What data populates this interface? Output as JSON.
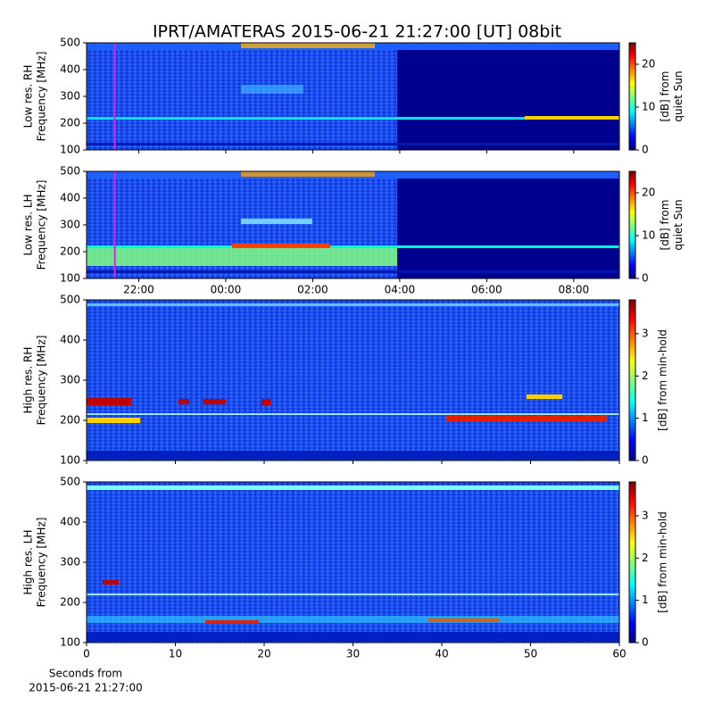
{
  "chart_data": [
    {
      "type": "heatmap",
      "title": "IPRT/AMATERAS 2015-06-21 21:27:00 [UT]   08bit",
      "ylabel": [
        "Low res. RH",
        "Frequency [MHz]"
      ],
      "ylim": [
        100,
        500
      ],
      "yticks": [
        100,
        200,
        300,
        400,
        500
      ],
      "xlim": [
        20.8,
        33.05
      ],
      "xticks": [
        {
          "value": 22,
          "label": "22:00"
        },
        {
          "value": 24,
          "label": "00:00"
        },
        {
          "value": 26,
          "label": "02:00"
        },
        {
          "value": 28,
          "label": "04:00"
        },
        {
          "value": 30,
          "label": "06:00"
        },
        {
          "value": 32,
          "label": "08:00"
        }
      ],
      "show_xtick_labels": false,
      "cursor": 21.45,
      "cursor_color": "#e020e0",
      "colorbar_label": [
        "[dB] from",
        "quiet Sun"
      ],
      "clim": [
        0,
        25
      ],
      "cticks": [
        0,
        10,
        20
      ],
      "colormap": "jet"
    },
    {
      "type": "heatmap",
      "ylabel": [
        "Low res. LH",
        "Frequency [MHz]"
      ],
      "ylim": [
        100,
        500
      ],
      "yticks": [
        100,
        200,
        300,
        400,
        500
      ],
      "xlim": [
        20.8,
        33.05
      ],
      "xticks": [
        {
          "value": 22,
          "label": "22:00"
        },
        {
          "value": 24,
          "label": "00:00"
        },
        {
          "value": 26,
          "label": "02:00"
        },
        {
          "value": 28,
          "label": "04:00"
        },
        {
          "value": 30,
          "label": "06:00"
        },
        {
          "value": 32,
          "label": "08:00"
        }
      ],
      "show_xtick_labels": true,
      "cursor": 21.45,
      "cursor_color": "#e020e0",
      "colorbar_label": [
        "[dB] from",
        "quiet Sun"
      ],
      "clim": [
        0,
        25
      ],
      "cticks": [
        0,
        10,
        20
      ],
      "colormap": "jet"
    },
    {
      "type": "heatmap",
      "ylabel": [
        "High res. RH",
        "Frequency [MHz]"
      ],
      "ylim": [
        100,
        500
      ],
      "yticks": [
        100,
        200,
        300,
        400,
        500
      ],
      "xlim": [
        0,
        60
      ],
      "xticks": [
        0,
        10,
        20,
        30,
        40,
        50,
        60
      ],
      "show_xtick_labels": false,
      "colorbar_label": [
        "[dB] from min-hold"
      ],
      "clim": [
        0,
        3.8
      ],
      "cticks": [
        0,
        1,
        2,
        3
      ],
      "colormap": "jet"
    },
    {
      "type": "heatmap",
      "ylabel": [
        "High res. LH",
        "Frequency [MHz]"
      ],
      "ylim": [
        100,
        500
      ],
      "yticks": [
        100,
        200,
        300,
        400,
        500
      ],
      "xlim": [
        0,
        60
      ],
      "xticks": [
        0,
        10,
        20,
        30,
        40,
        50,
        60
      ],
      "show_xtick_labels": true,
      "xlabel": [
        "Seconds from",
        "2015-06-21 21:27:00"
      ],
      "colorbar_label": [
        "[dB] from min-hold"
      ],
      "clim": [
        0,
        3.8
      ],
      "cticks": [
        0,
        1,
        2,
        3
      ],
      "colormap": "jet"
    }
  ]
}
